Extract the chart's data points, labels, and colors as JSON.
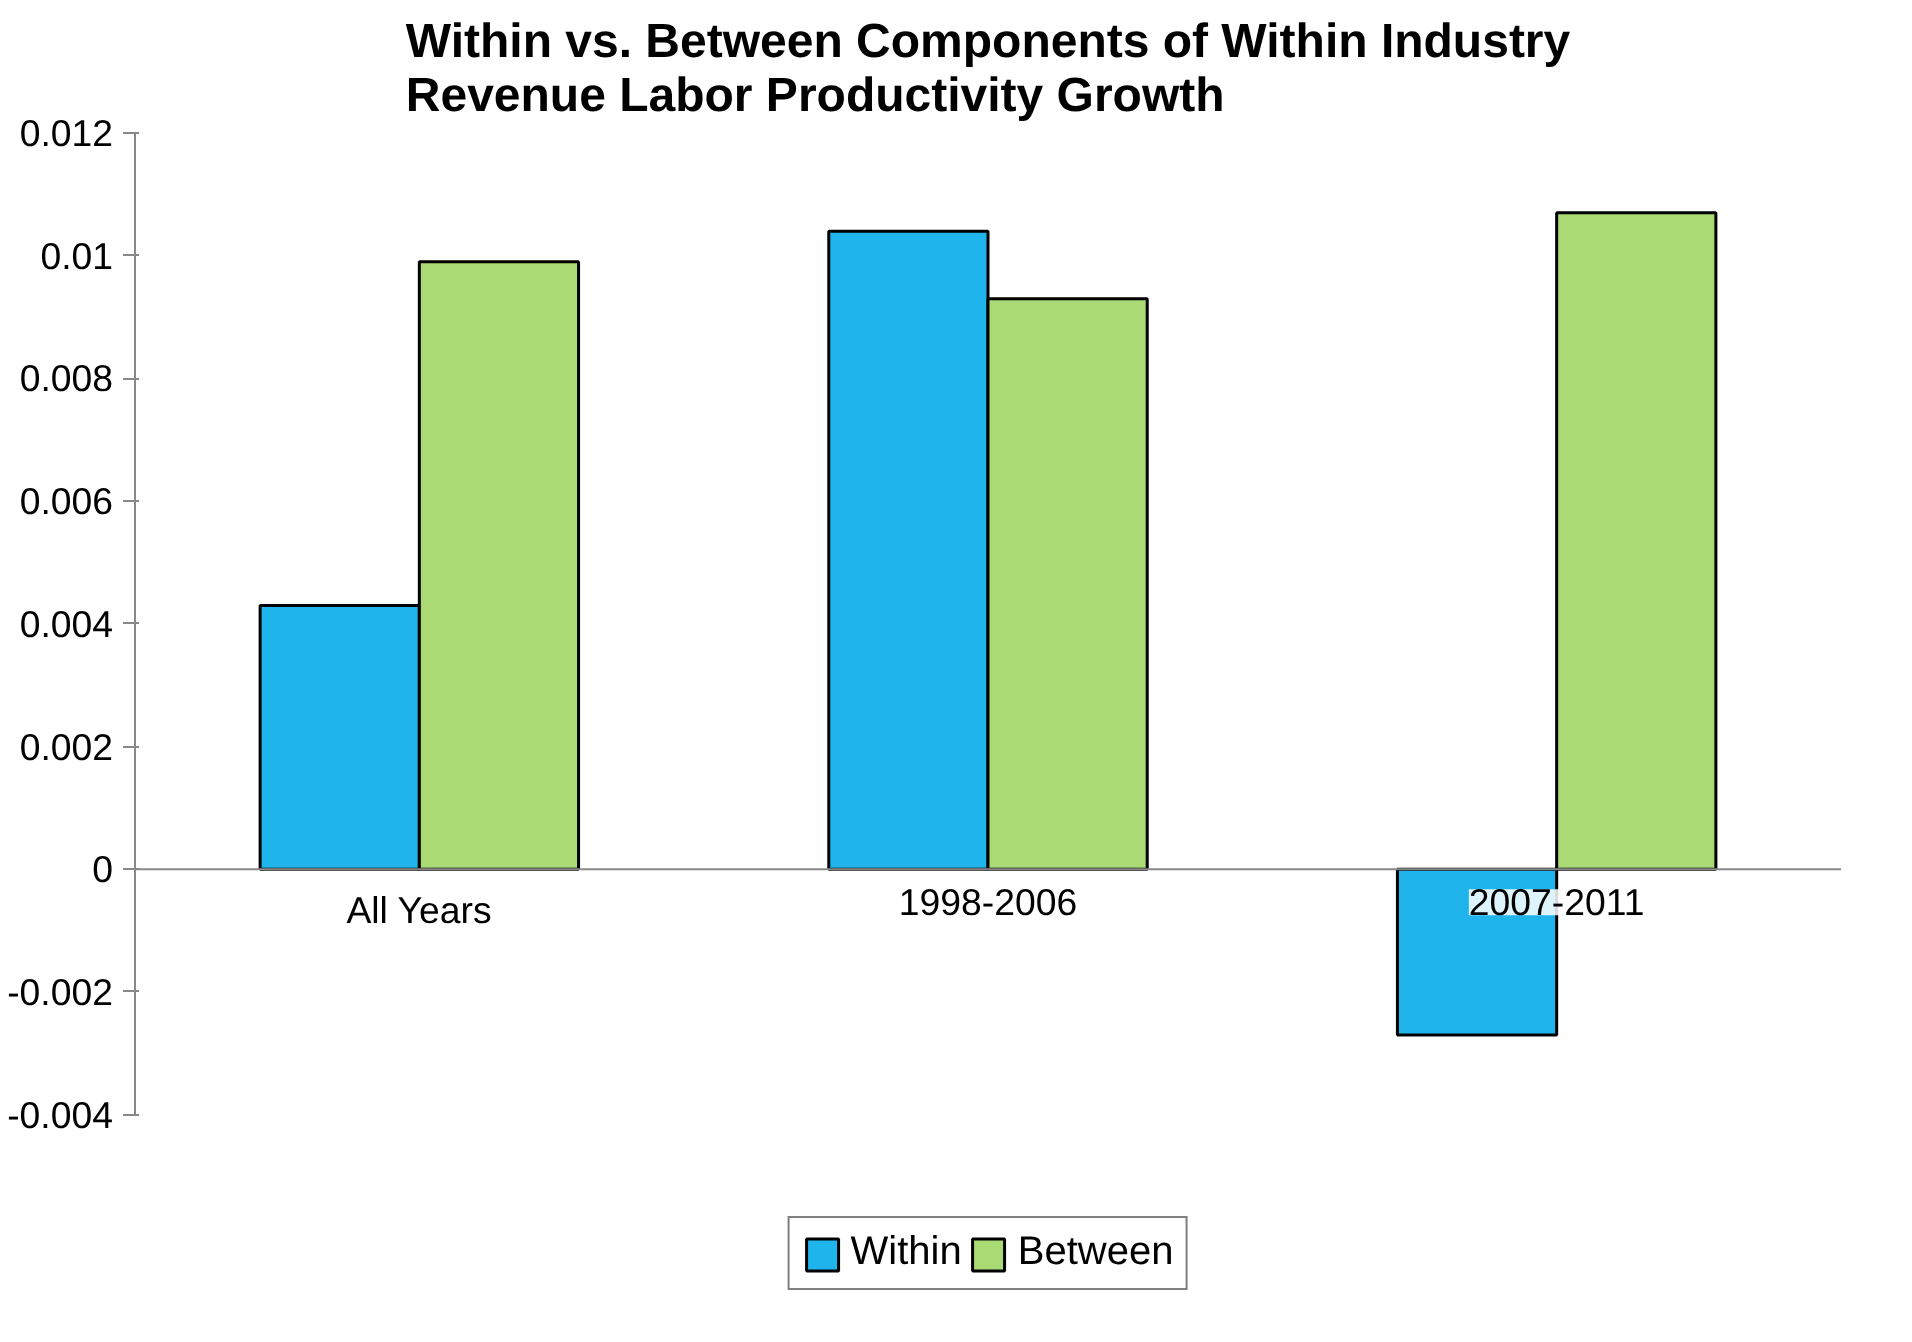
{
  "chart_data": {
    "type": "bar",
    "title": "Within vs. Between Components of Within Industry\nRevenue Labor Productivity Growth",
    "categories": [
      "All Years",
      "1998-2006",
      "2007-2011"
    ],
    "series": [
      {
        "name": "Within",
        "color": "#1fb4ec",
        "values": [
          0.0043,
          0.0104,
          -0.0027
        ]
      },
      {
        "name": "Between",
        "color": "#a9da74",
        "values": [
          0.0099,
          0.0093,
          0.0107
        ]
      }
    ],
    "ylim": [
      -0.004,
      0.012
    ],
    "yticks": [
      -0.004,
      -0.002,
      0,
      0.002,
      0.004,
      0.006,
      0.008,
      0.01,
      0.012
    ],
    "grid": false,
    "legend": "bottom"
  }
}
